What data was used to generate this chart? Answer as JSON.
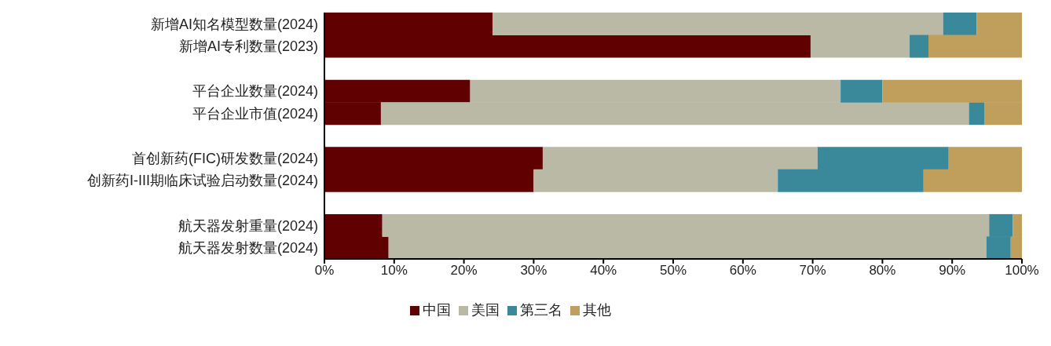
{
  "chart_data": {
    "type": "bar",
    "orientation": "horizontal",
    "stacked": true,
    "legend": "bottom",
    "categories": [
      "新增AI知名模型数量(2024)",
      "新增AI专利数量(2023)",
      null,
      "平台企业数量(2024)",
      "平台企业市值(2024)",
      null,
      "首创新药(FIC)研发数量(2024)",
      "创新药I-III期临床试验启动数量(2024)",
      null,
      "航天器发射重量(2024)",
      "航天器发射数量(2024)"
    ],
    "series": [
      {
        "name": "中国",
        "color": "#600000",
        "values": [
          24.1,
          69.7,
          null,
          20.9,
          8.1,
          null,
          31.3,
          30.0,
          null,
          8.3,
          9.2
        ]
      },
      {
        "name": "美国",
        "color": "#bab9a6",
        "values": [
          64.6,
          14.2,
          null,
          53.1,
          84.3,
          null,
          39.4,
          35.0,
          null,
          87.0,
          85.7
        ]
      },
      {
        "name": "第三名",
        "color": "#3a899b",
        "values": [
          4.8,
          2.7,
          null,
          6.0,
          2.2,
          null,
          18.8,
          20.9,
          null,
          3.4,
          3.5
        ]
      },
      {
        "name": "其他",
        "color": "#c09f5c",
        "values": [
          6.5,
          13.4,
          null,
          20.0,
          5.4,
          null,
          10.5,
          14.1,
          null,
          1.3,
          1.6
        ]
      }
    ],
    "xlim": [
      0,
      100
    ],
    "xticks": [
      {
        "value": 0,
        "label": "0%"
      },
      {
        "value": 10,
        "label": "10%"
      },
      {
        "value": 20,
        "label": "20%"
      },
      {
        "value": 30,
        "label": "30%"
      },
      {
        "value": 40,
        "label": "40%"
      },
      {
        "value": 50,
        "label": "50%"
      },
      {
        "value": 60,
        "label": "60%"
      },
      {
        "value": 70,
        "label": "70%"
      },
      {
        "value": 80,
        "label": "80%"
      },
      {
        "value": 90,
        "label": "90%"
      },
      {
        "value": 100,
        "label": "100%"
      }
    ]
  }
}
